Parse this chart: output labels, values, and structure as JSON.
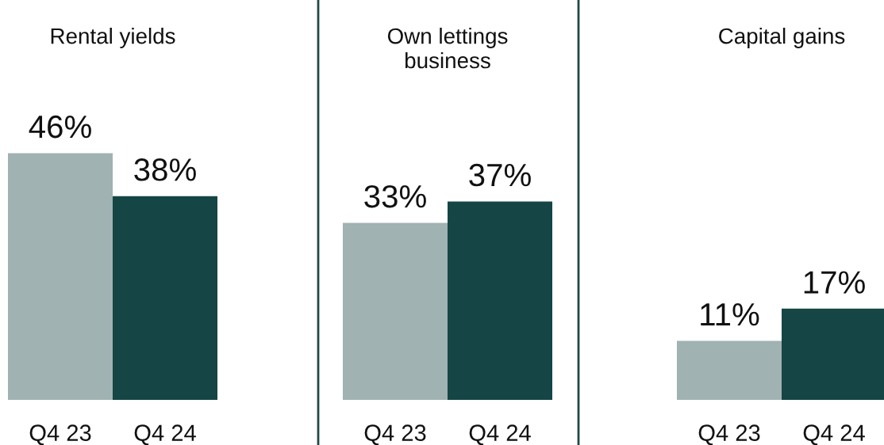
{
  "chart_data": [
    {
      "type": "bar",
      "title": "Rental yields",
      "categories": [
        "Q4 23",
        "Q4 24"
      ],
      "values": [
        46,
        38
      ],
      "colors": [
        "#a0b2b1",
        "#154545"
      ],
      "value_labels": [
        "46%",
        "38%"
      ]
    },
    {
      "type": "bar",
      "title": "Own lettings\nbusiness",
      "categories": [
        "Q4 23",
        "Q4 24"
      ],
      "values": [
        33,
        37
      ],
      "colors": [
        "#a0b2b1",
        "#154545"
      ],
      "value_labels": [
        "33%",
        "37%"
      ]
    },
    {
      "type": "bar",
      "title": "Capital gains",
      "categories": [
        "Q4 23",
        "Q4 24"
      ],
      "values": [
        11,
        17
      ],
      "colors": [
        "#a0b2b1",
        "#154545"
      ],
      "value_labels": [
        "11%",
        "17%"
      ]
    }
  ]
}
